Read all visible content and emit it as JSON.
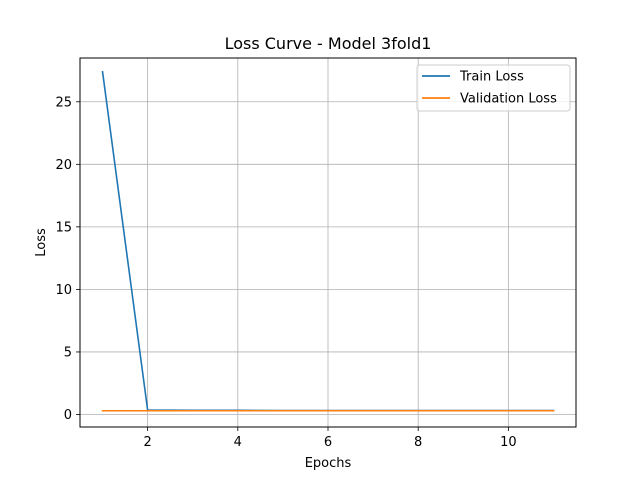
{
  "chart_data": {
    "type": "line",
    "title": "Loss Curve - Model 3fold1",
    "xlabel": "Epochs",
    "ylabel": "Loss",
    "xlim": [
      0.5,
      11.5
    ],
    "ylim": [
      -1.0,
      28.5
    ],
    "xticks": [
      2,
      4,
      6,
      8,
      10
    ],
    "yticks": [
      0,
      5,
      10,
      15,
      20,
      25
    ],
    "grid": true,
    "legend_position": "upper right",
    "x": [
      1,
      2,
      3,
      4,
      5,
      6,
      7,
      8,
      9,
      10,
      11
    ],
    "series": [
      {
        "name": "Train Loss",
        "color": "#1f77b4",
        "values": [
          27.4,
          0.35,
          0.33,
          0.33,
          0.32,
          0.32,
          0.32,
          0.32,
          0.32,
          0.32,
          0.32
        ]
      },
      {
        "name": "Validation Loss",
        "color": "#ff7f0e",
        "values": [
          0.3,
          0.3,
          0.3,
          0.3,
          0.3,
          0.3,
          0.3,
          0.3,
          0.3,
          0.3,
          0.3
        ]
      }
    ]
  }
}
